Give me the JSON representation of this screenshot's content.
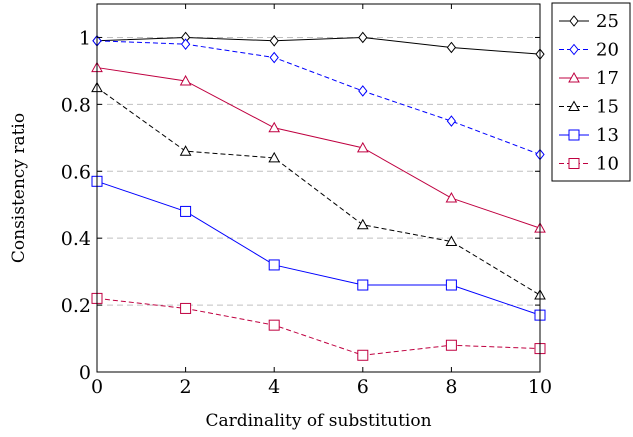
{
  "chart_data": {
    "type": "line",
    "xlabel": "Cardinality of substitution",
    "ylabel": "Consistency ratio",
    "x": [
      0,
      2,
      4,
      6,
      8,
      10
    ],
    "xlim": [
      0,
      10
    ],
    "ylim": [
      0,
      1.1
    ],
    "xticks": [
      "0",
      "2",
      "4",
      "6",
      "8",
      "10"
    ],
    "yticks": [
      "0",
      "0.2",
      "0.4",
      "0.6",
      "0.8",
      "1"
    ],
    "ytick_values": [
      0,
      0.2,
      0.4,
      0.6,
      0.8,
      1
    ],
    "grid": "horizontal dashed",
    "legend_position": "outside-right",
    "series": [
      {
        "name": "25",
        "values": [
          0.99,
          1.0,
          0.99,
          1.0,
          0.97,
          0.95
        ],
        "color": "#000000",
        "marker": "diamond",
        "dash": "solid"
      },
      {
        "name": "20",
        "values": [
          0.99,
          0.98,
          0.94,
          0.84,
          0.75,
          0.65
        ],
        "color": "#0000ff",
        "marker": "diamond",
        "dash": "dashed"
      },
      {
        "name": "17",
        "values": [
          0.91,
          0.87,
          0.73,
          0.67,
          0.52,
          0.43
        ],
        "color": "#bf0040",
        "marker": "triangle",
        "dash": "solid"
      },
      {
        "name": "15",
        "values": [
          0.85,
          0.66,
          0.64,
          0.44,
          0.39,
          0.23
        ],
        "color": "#000000",
        "marker": "triangle",
        "dash": "dashed"
      },
      {
        "name": "13",
        "values": [
          0.57,
          0.48,
          0.32,
          0.26,
          0.26,
          0.17
        ],
        "color": "#0000ff",
        "marker": "square",
        "dash": "solid"
      },
      {
        "name": "10",
        "values": [
          0.22,
          0.19,
          0.14,
          0.05,
          0.08,
          0.07
        ],
        "color": "#bf0040",
        "marker": "square",
        "dash": "dashed"
      }
    ]
  }
}
